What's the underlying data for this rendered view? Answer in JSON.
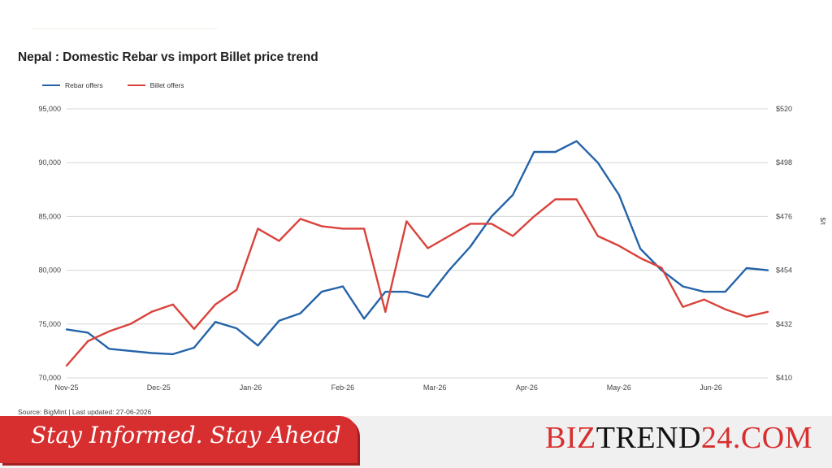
{
  "header": {
    "title": "Nepal : Domestic Rebar vs import Billet price trend"
  },
  "legend": {
    "rebar": "Rebar offers",
    "billet": "Billet offers"
  },
  "source": "Source: BigMint | Last updated: 27-06-2026",
  "footer": {
    "tagline": "Stay Informed. Stay Ahead",
    "brand_part1": "BIZ",
    "brand_part2": "TREND",
    "brand_part3": "24.COM"
  },
  "colors": {
    "rebar": "#2563a8",
    "billet": "#d9423b",
    "grid": "#d6d6d6",
    "brand": "#d72f2f"
  },
  "chart_data": {
    "type": "line",
    "title": "Nepal : Domestic Rebar vs import Billet price trend",
    "x_tick_labels": [
      "Nov-25",
      "Dec-25",
      "Jan-26",
      "Feb-26",
      "Mar-26",
      "Apr-26",
      "May-26",
      "Jun-26"
    ],
    "y_left": {
      "ylim": [
        70000,
        95000
      ],
      "ticks": [
        "70,000",
        "75,000",
        "80,000",
        "85,000",
        "90,000",
        "95,000"
      ]
    },
    "y_right": {
      "label": "$/t",
      "ylim": [
        410,
        520
      ],
      "ticks": [
        "$410",
        "$432",
        "$454",
        "$476",
        "$498",
        "$520"
      ]
    },
    "grid": true,
    "legend_position": "top-left",
    "series": [
      {
        "name": "Rebar offers",
        "axis": "left",
        "values": [
          74500,
          74200,
          72700,
          72500,
          72300,
          72200,
          72800,
          75200,
          74600,
          73000,
          75300,
          76000,
          78000,
          78500,
          75500,
          78000,
          78000,
          77500,
          80000,
          82200,
          85000,
          87000,
          91000,
          91000,
          92000,
          90000,
          87000,
          82000,
          80000,
          78500,
          78000,
          78000,
          80200,
          80000
        ]
      },
      {
        "name": "Billet offers",
        "axis": "right",
        "values": [
          415,
          425,
          429,
          432,
          437,
          440,
          430,
          440,
          446,
          471,
          466,
          475,
          472,
          471,
          471,
          437,
          474,
          463,
          468,
          473,
          473,
          468,
          476,
          483,
          483,
          468,
          464,
          459,
          455,
          439,
          442,
          438,
          435,
          437
        ]
      }
    ]
  }
}
